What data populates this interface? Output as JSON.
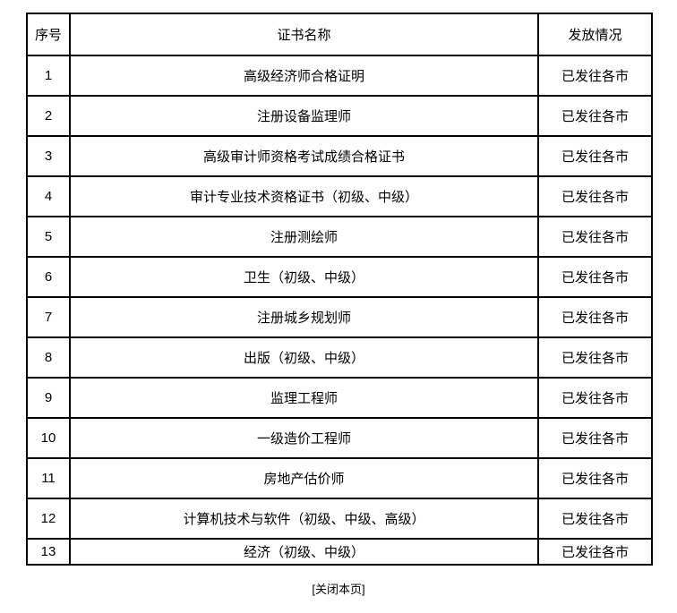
{
  "colors": {
    "background": "#ffffff",
    "border": "#000000",
    "text": "#000000"
  },
  "table": {
    "headers": {
      "no": "序号",
      "name": "证书名称",
      "status": "发放情况"
    },
    "rows": [
      {
        "no": "1",
        "name": "高级经济师合格证明",
        "status": "已发往各市"
      },
      {
        "no": "2",
        "name": "注册设备监理师",
        "status": "已发往各市"
      },
      {
        "no": "3",
        "name": "高级审计师资格考试成绩合格证书",
        "status": "已发往各市"
      },
      {
        "no": "4",
        "name": "审计专业技术资格证书（初级、中级）",
        "status": "已发往各市"
      },
      {
        "no": "5",
        "name": "注册测绘师",
        "status": "已发往各市"
      },
      {
        "no": "6",
        "name": "卫生（初级、中级）",
        "status": "已发往各市"
      },
      {
        "no": "7",
        "name": "注册城乡规划师",
        "status": "已发往各市"
      },
      {
        "no": "8",
        "name": "出版（初级、中级）",
        "status": "已发往各市"
      },
      {
        "no": "9",
        "name": "监理工程师",
        "status": "已发往各市"
      },
      {
        "no": "10",
        "name": "一级造价工程师",
        "status": "已发往各市"
      },
      {
        "no": "11",
        "name": "房地产估价师",
        "status": "已发往各市"
      },
      {
        "no": "12",
        "name": "计算机技术与软件（初级、中级、高级）",
        "status": "已发往各市"
      },
      {
        "no": "13",
        "name": "经济（初级、中级）",
        "status": "已发往各市"
      }
    ]
  },
  "footer": {
    "close_label": "[关闭本页]"
  }
}
